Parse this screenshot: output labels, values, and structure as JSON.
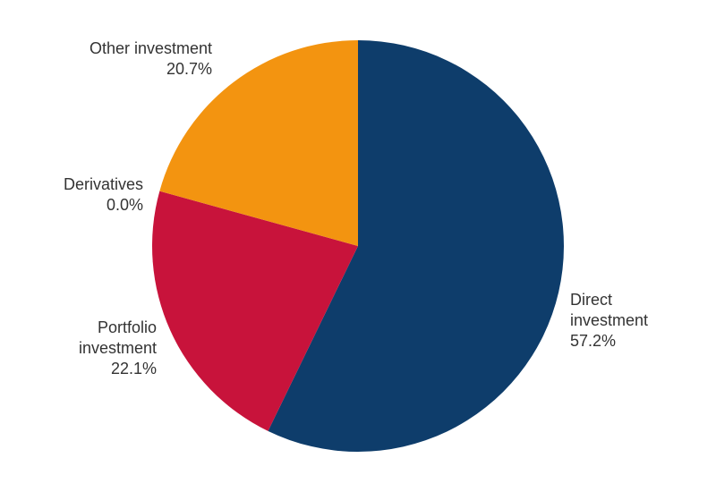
{
  "chart_data": {
    "type": "pie",
    "categories": [
      "Direct investment",
      "Portfolio investment",
      "Derivatives",
      "Other investment"
    ],
    "values": [
      57.2,
      22.1,
      0.0,
      20.7
    ],
    "value_labels": [
      "57.2%",
      "22.1%",
      "0.0%",
      "20.7%"
    ],
    "colors": [
      "#0e3d6b",
      "#c8133b",
      "#7f7f7f",
      "#f39410"
    ]
  }
}
